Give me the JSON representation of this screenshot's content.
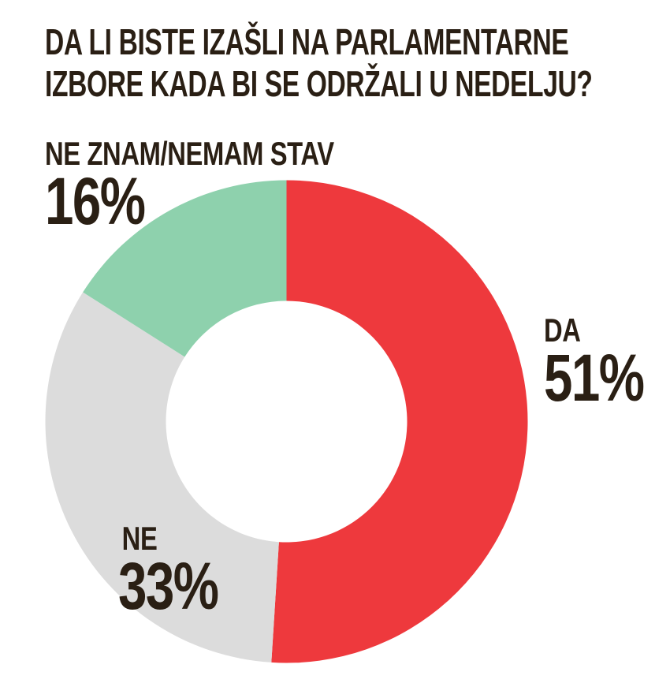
{
  "title": {
    "line1": "DA LI BISTE IZAŠLI NA PARLAMENTARNE",
    "line2": "IZBORE KADA BI SE ODRŽALI U NEDELJU?"
  },
  "chart_data": {
    "type": "pie",
    "subtype": "donut",
    "title": "DA LI BISTE IZAŠLI NA PARLAMENTARNE IZBORE KADA BI SE ODRŽALI U NEDELJU?",
    "categories": [
      "DA",
      "NE",
      "NE ZNAM/NEMAM STAV"
    ],
    "values": [
      51,
      33,
      16
    ],
    "unit": "%",
    "colors": [
      "#ee393d",
      "#dcdcdc",
      "#8ed1ad"
    ],
    "start_angle_deg": 0,
    "direction": "clockwise",
    "inner_radius_ratio": 0.5,
    "legend_position": "around-chart",
    "labels": [
      {
        "name": "DA",
        "value_text": "51%",
        "position": "right"
      },
      {
        "name": "NE",
        "value_text": "33%",
        "position": "bottom-left"
      },
      {
        "name": "NE ZNAM/NEMAM STAV",
        "value_text": "16%",
        "position": "top-left"
      }
    ]
  },
  "colors": {
    "text": "#2a1f14",
    "background": "#ffffff"
  }
}
